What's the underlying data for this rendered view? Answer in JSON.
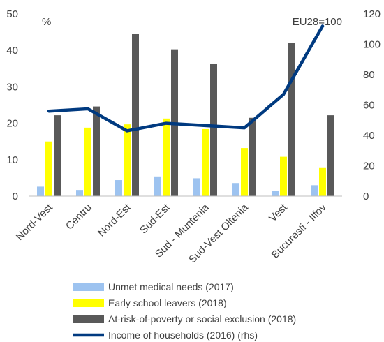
{
  "chart_data": {
    "type": "bar",
    "categories": [
      "Nord-Vest",
      "Centru",
      "Nord-Est",
      "Sud-Est",
      "Sud - Muntenia",
      "Sud-Vest Oltenia",
      "Vest",
      "Bucuresti - Ilfov"
    ],
    "series": [
      {
        "name": "Unmet medical needs (2017)",
        "type": "bar",
        "axis": "left",
        "color": "#9DC3F0",
        "values": [
          2.6,
          1.7,
          4.4,
          5.4,
          4.9,
          3.6,
          1.5,
          3.0
        ]
      },
      {
        "name": "Early school leavers (2018)",
        "type": "bar",
        "axis": "left",
        "color": "#FFFF00",
        "values": [
          15.0,
          18.8,
          19.7,
          21.3,
          18.4,
          13.2,
          10.8,
          7.9
        ]
      },
      {
        "name": "At-risk-of-poverty or social exclusion (2018)",
        "type": "bar",
        "axis": "left",
        "color": "#595959",
        "values": [
          22.2,
          24.6,
          44.6,
          40.3,
          36.4,
          21.5,
          42.1,
          22.2
        ]
      },
      {
        "name": "Income of households (2016) (rhs)",
        "type": "line",
        "axis": "right",
        "color": "#003A80",
        "values": [
          56,
          57.5,
          43,
          48,
          46.5,
          45,
          67,
          112
        ]
      }
    ],
    "y_left": {
      "min": 0,
      "max": 50,
      "ticks": [
        0,
        10,
        20,
        30,
        40,
        50
      ],
      "unit_label": "%"
    },
    "y_right": {
      "min": 0,
      "max": 120,
      "ticks": [
        0,
        20,
        40,
        60,
        80,
        100,
        120
      ]
    },
    "annotation": "EU28=100",
    "legend_position": "bottom",
    "grid": false
  }
}
